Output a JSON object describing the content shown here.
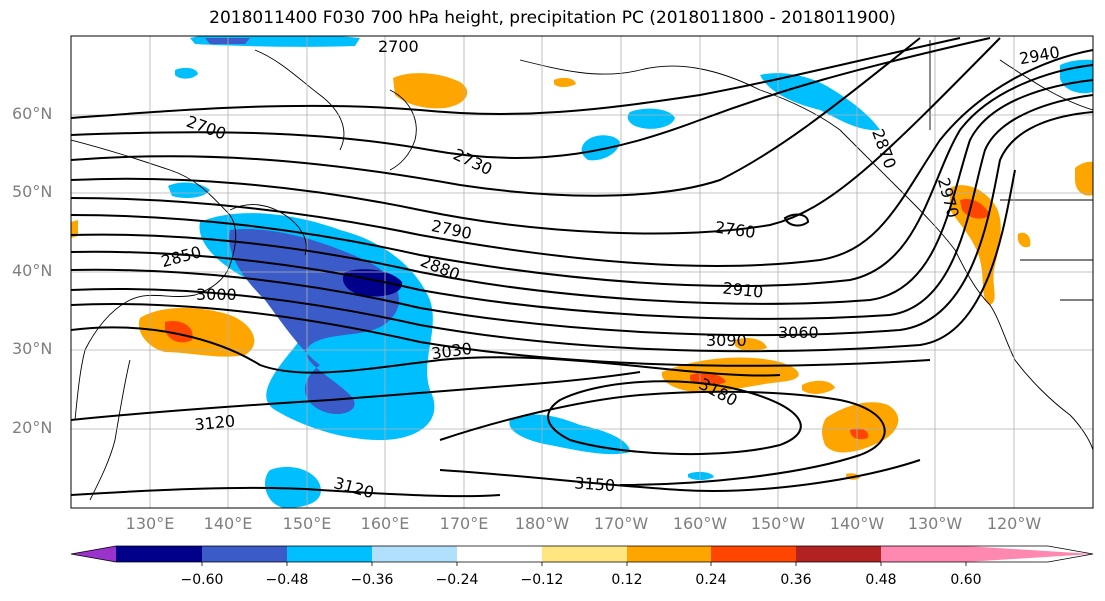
{
  "title": "2018011400 F030 700 hPa height, precipitation PC (2018011800 - 2018011900)",
  "lat_ticks": [
    "60°N",
    "50°N",
    "40°N",
    "30°N",
    "20°N"
  ],
  "lon_ticks": [
    "130°E",
    "140°E",
    "150°E",
    "160°E",
    "170°E",
    "180°W",
    "170°W",
    "160°W",
    "150°W",
    "140°W",
    "130°W",
    "120°W"
  ],
  "contour_labels": [
    "2700",
    "2700",
    "2730",
    "2790",
    "2760",
    "2850",
    "2880",
    "2910",
    "3000",
    "3030",
    "3090",
    "3060",
    "3120",
    "3180",
    "3120",
    "3150",
    "2940",
    "2870",
    "2970"
  ],
  "colorbar": {
    "labels": [
      "−0.60",
      "−0.48",
      "−0.36",
      "−0.24",
      "−0.12",
      "0.12",
      "0.24",
      "0.36",
      "0.48",
      "0.60"
    ],
    "colors": [
      "#9933cc",
      "#00008b",
      "#3a5bc8",
      "#00bfff",
      "#b0e0fb",
      "#ffffff",
      "#ffe680",
      "#ffa500",
      "#ff4500",
      "#b22222",
      "#ff88b0"
    ]
  }
}
